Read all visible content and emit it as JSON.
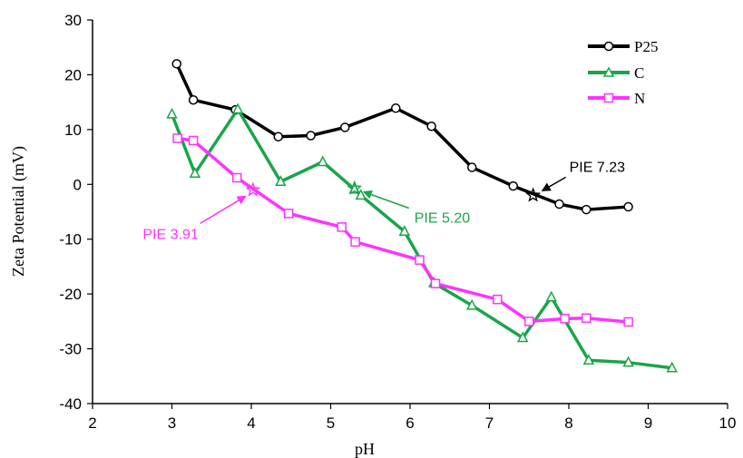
{
  "chart_data": {
    "type": "line",
    "xlabel": "pH",
    "ylabel": "Zeta Potential (mV)",
    "xlim": [
      2,
      10
    ],
    "ylim": [
      -40,
      30
    ],
    "xticks": [
      "2",
      "3",
      "4",
      "5",
      "6",
      "7",
      "8",
      "9",
      "10"
    ],
    "yticks": [
      "30",
      "20",
      "10",
      "0",
      "-10",
      "-20",
      "-30",
      "-40"
    ],
    "grid": false,
    "legend_position": "top-right",
    "series": [
      {
        "name": "P25",
        "color": "#000000",
        "marker": "circle",
        "x": [
          3.06,
          3.27,
          3.8,
          4.34,
          4.75,
          5.18,
          5.82,
          6.27,
          6.78,
          7.3,
          7.88,
          8.22,
          8.75
        ],
        "y": [
          22,
          15.4,
          13.6,
          8.7,
          8.9,
          10.4,
          13.9,
          10.6,
          3.1,
          -0.3,
          -3.6,
          -4.6,
          -4.1
        ]
      },
      {
        "name": "C",
        "color": "#1aa54a",
        "marker": "triangle",
        "x": [
          3.0,
          3.29,
          3.83,
          4.37,
          4.9,
          5.3,
          5.38,
          5.93,
          6.3,
          6.78,
          7.42,
          7.78,
          8.25,
          8.75,
          9.3
        ],
        "y": [
          12.8,
          2.0,
          13.7,
          0.5,
          4.1,
          -0.9,
          -2.0,
          -8.6,
          -18.0,
          -22.1,
          -28.0,
          -20.6,
          -32.1,
          -32.5,
          -33.5
        ]
      },
      {
        "name": "N",
        "color": "#ff33ff",
        "marker": "square",
        "x": [
          3.07,
          3.27,
          3.82,
          4.47,
          5.14,
          5.31,
          6.12,
          6.32,
          7.1,
          7.5,
          7.95,
          8.22,
          8.75
        ],
        "y": [
          8.4,
          8.0,
          1.2,
          -5.3,
          -7.8,
          -10.5,
          -13.8,
          -18.1,
          -21.0,
          -25.0,
          -24.5,
          -24.4,
          -25.1
        ]
      }
    ],
    "annotations": [
      {
        "label": "PIE 7.23",
        "x": 7.55,
        "y": -2.0,
        "color": "#000000",
        "series": "P25"
      },
      {
        "label": "PIE 5.20",
        "x": 5.3,
        "y": -0.7,
        "color": "#1aa54a",
        "series": "C"
      },
      {
        "label": "PIE 3.91",
        "x": 4.02,
        "y": -1.0,
        "color": "#ff33ff",
        "series": "N"
      }
    ]
  }
}
